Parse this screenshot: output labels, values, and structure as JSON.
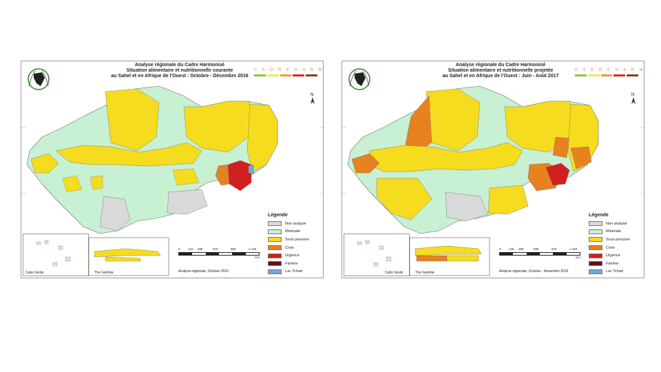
{
  "maps": [
    {
      "id": "map-left",
      "title_lines": [
        "Analyse régionale du Cadre Harmonisé",
        "Situation alimentaire et nutritionnelle courante",
        "au Sahel et en Afrique de l'Ouest : Octobre - Décembre 2016"
      ],
      "cadre_text": "C A D R E   H A R M O N I S É",
      "logo_text": "C I L S S",
      "inset_labels": [
        "Cabo Verde",
        "The Gambia"
      ],
      "scale_labels": [
        "0",
        "142",
        "285",
        "570",
        "855",
        "1 140"
      ],
      "scale_unit": "Km",
      "credit": "Analyse régionale, Octobre 2016"
    },
    {
      "id": "map-right",
      "title_lines": [
        "Analyse régionale du Cadre Harmonisé",
        "Situation alimentaire et nutritionnelle projetée",
        "au Sahel et en Afrique de l'Ouest : Juin - Août 2017"
      ],
      "cadre_text": "C A D R E   H A R M O N I S É",
      "logo_text": "C I L S S",
      "inset_labels": [
        "Cabo Verde",
        "The Gambia"
      ],
      "scale_labels": [
        "0",
        "145",
        "290",
        "580",
        "870",
        "1 160"
      ],
      "scale_unit": "Km",
      "credit": "Analyse régionale, Octobre - Novembre 2016"
    }
  ],
  "legend": {
    "title": "Légende",
    "items": [
      {
        "label": "Non analysé",
        "color": "#d9d9d9"
      },
      {
        "label": "Minimale",
        "color": "#c8f0d2"
      },
      {
        "label": "Sous pression",
        "color": "#f5dc1f"
      },
      {
        "label": "Crise",
        "color": "#e8821f"
      },
      {
        "label": "Urgence",
        "color": "#d21f1f"
      },
      {
        "label": "Famine",
        "color": "#6b1010"
      },
      {
        "label": "Lac Tchad",
        "color": "#6fa8dc"
      }
    ]
  },
  "cadre_bar_colors": [
    "#8cc63e",
    "#f5e65a",
    "#f29a2e",
    "#d8281f",
    "#8b3a1a"
  ]
}
